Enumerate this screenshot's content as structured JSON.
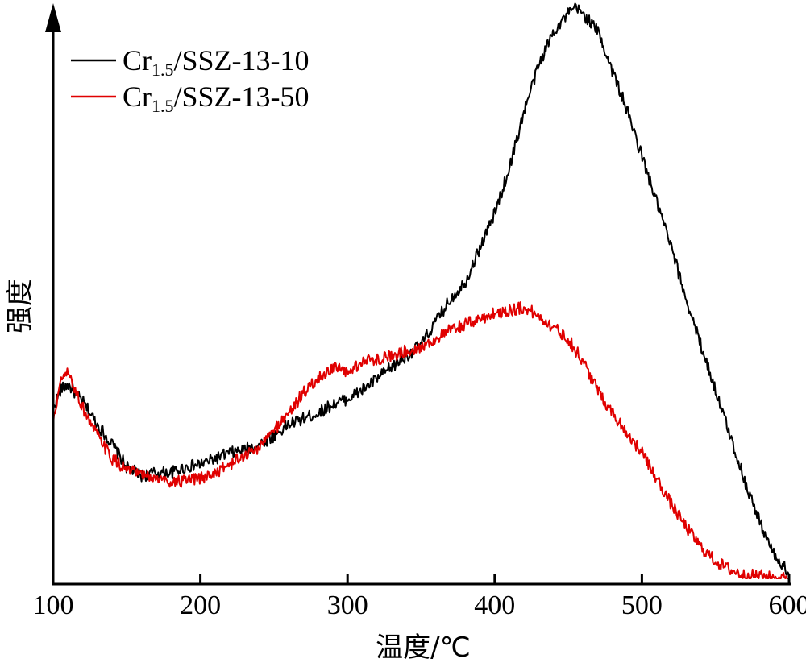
{
  "chart_data": {
    "type": "line",
    "title": "",
    "xlabel": "温度/℃",
    "ylabel": "强度",
    "xlim": [
      100,
      600
    ],
    "ylim": [
      0,
      100
    ],
    "xticks": [
      100,
      200,
      300,
      400,
      500,
      600
    ],
    "y_tick_labels": false,
    "grid": false,
    "legend_position": "top-left",
    "series": [
      {
        "name": "Cr1.5/SSZ-13-10",
        "legend_main": "Cr",
        "legend_sub": "1.5",
        "legend_rest": "/SSZ-13-10",
        "color": "#000000",
        "x": [
          100,
          105,
          110,
          120,
          130,
          140,
          150,
          160,
          170,
          180,
          190,
          200,
          210,
          220,
          230,
          240,
          250,
          260,
          270,
          280,
          290,
          300,
          310,
          320,
          330,
          340,
          350,
          360,
          370,
          380,
          390,
          400,
          410,
          420,
          430,
          440,
          450,
          455,
          460,
          470,
          480,
          490,
          500,
          510,
          520,
          530,
          540,
          550,
          560,
          570,
          580,
          590,
          600
        ],
        "y": [
          30,
          33,
          34,
          31,
          27,
          23.5,
          19.5,
          18,
          18.5,
          18.5,
          19.5,
          20,
          21,
          22,
          22.5,
          23.5,
          25,
          27,
          28,
          29,
          30.5,
          31.5,
          33,
          35,
          37,
          39,
          41,
          45,
          49,
          52,
          58,
          64,
          72,
          82,
          90,
          96,
          99,
          100,
          99,
          96,
          89,
          82,
          74,
          66,
          58,
          49,
          41,
          33,
          25,
          17,
          10,
          4,
          1
        ]
      },
      {
        "name": "Cr1.5/SSZ-13-50",
        "legend_main": "Cr",
        "legend_sub": "1.5",
        "legend_rest": "/SSZ-13-50",
        "color": "#e00000",
        "x": [
          100,
          103,
          106,
          110,
          120,
          130,
          140,
          150,
          160,
          170,
          180,
          190,
          200,
          210,
          220,
          230,
          240,
          250,
          260,
          270,
          280,
          290,
          300,
          310,
          320,
          330,
          340,
          350,
          360,
          370,
          380,
          390,
          400,
          410,
          420,
          430,
          440,
          450,
          460,
          470,
          480,
          490,
          500,
          510,
          520,
          530,
          540,
          550,
          560,
          570,
          580,
          590,
          600
        ],
        "y": [
          27,
          32,
          35,
          36,
          30,
          25,
          21,
          19,
          18,
          17.5,
          17,
          17,
          17.5,
          18.5,
          20,
          21.5,
          23,
          26,
          29,
          32.5,
          35,
          37,
          36,
          38,
          38.5,
          39,
          40,
          40.5,
          42,
          43.5,
          44.5,
          45.5,
          46.5,
          47,
          47.5,
          46,
          44,
          42,
          38,
          33,
          29,
          25.5,
          22,
          17.5,
          13,
          9,
          5.5,
          3,
          1.5,
          0.5,
          0.5,
          0,
          0
        ]
      }
    ]
  }
}
